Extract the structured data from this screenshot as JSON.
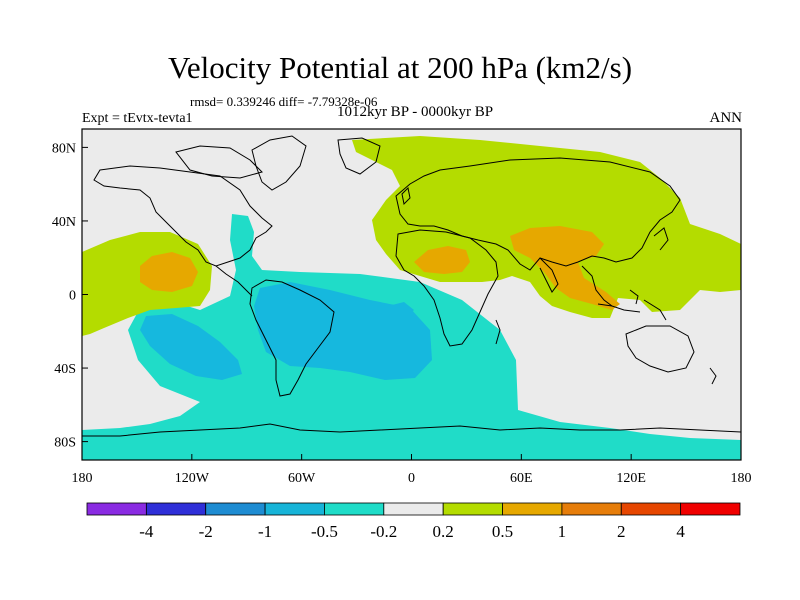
{
  "title": "Velocity Potential at 200 hPa (km2/s)",
  "stats_line": "rmsd= 0.339246 diff= -7.79328e-06",
  "experiment": "Expt = tEvtx-tevta1",
  "period": "1012kyr BP - 0000kyr BP",
  "season": "ANN",
  "map": {
    "projection": "cylindrical-equidistant",
    "lon_range": [
      -180,
      180
    ],
    "lat_range": [
      -90,
      90
    ],
    "background_color": "#ebebeb",
    "coastline_color": "#000000",
    "x_ticks": [
      "180",
      "120W",
      "60W",
      "0",
      "60E",
      "120E",
      "180"
    ],
    "y_ticks": [
      "80N",
      "40N",
      "0",
      "40S",
      "80S"
    ]
  },
  "colorbar": {
    "colors": [
      "#8a2be2",
      "#2f2fd8",
      "#1e8cd2",
      "#17b4d8",
      "#1fdcc8",
      "#ebebeb",
      "#b4dc00",
      "#e6a800",
      "#e67d0a",
      "#e64600",
      "#f00000"
    ],
    "labels": [
      "-4",
      "-2",
      "-1",
      "-0.5",
      "-0.2",
      "0.2",
      "0.5",
      "1",
      "2",
      "4"
    ]
  },
  "legend_levels": {
    "teal": "#20dcc8",
    "cyan": "#16b8de",
    "lime": "#b4dc00",
    "orange": "#e6a800"
  }
}
